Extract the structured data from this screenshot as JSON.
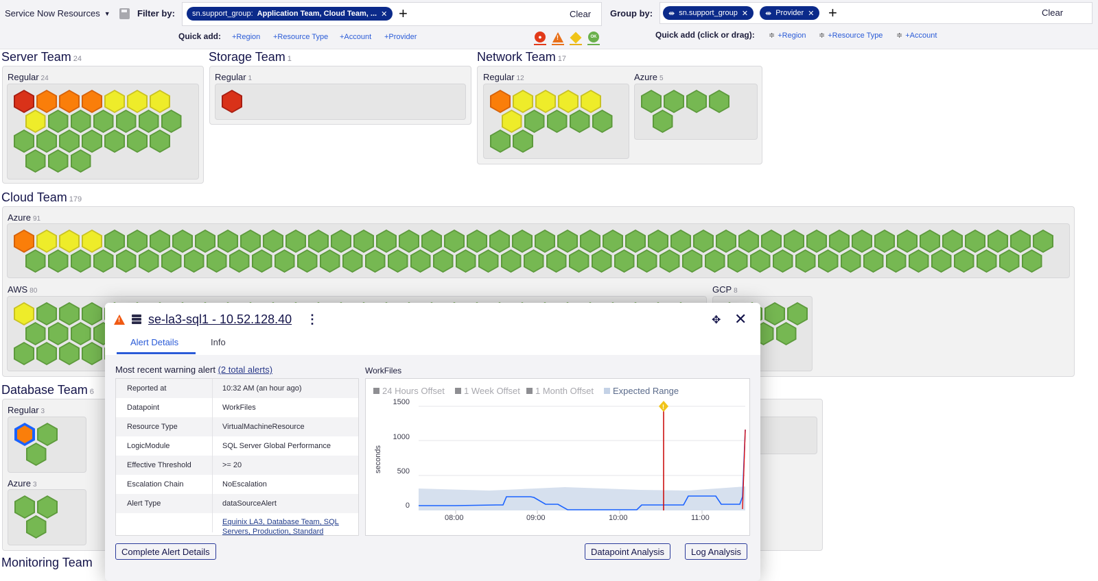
{
  "toolbar": {
    "resource_select": "Service Now Resources",
    "filter_label": "Filter by:",
    "filter_chip_key": "sn.support_group:",
    "filter_chip_value": "Application Team, Cloud Team, ...",
    "filter_clear": "Clear",
    "quick_add_label": "Quick add:",
    "quick_add": [
      "+Region",
      "+Resource Type",
      "+Account",
      "+Provider"
    ],
    "group_label": "Group by:",
    "group_chips": [
      "sn.support_group",
      "Provider"
    ],
    "group_clear": "Clear",
    "group_quick_add_label": "Quick add (click or drag):",
    "group_quick_add": [
      "+Region",
      "+Resource Type",
      "+Account"
    ],
    "severity_icons": [
      "critical-icon",
      "error-icon",
      "warning-icon",
      "ok-icon"
    ],
    "ok_text": "OK"
  },
  "teams": {
    "server": {
      "name": "Server Team",
      "count": "24",
      "groups": [
        {
          "name": "Regular",
          "count": "24"
        }
      ]
    },
    "storage": {
      "name": "Storage Team",
      "count": "1",
      "groups": [
        {
          "name": "Regular",
          "count": "1"
        }
      ]
    },
    "network": {
      "name": "Network Team",
      "count": "17",
      "groups": [
        {
          "name": "Regular",
          "count": "12"
        },
        {
          "name": "Azure",
          "count": "5"
        }
      ]
    },
    "cloud": {
      "name": "Cloud Team",
      "count": "179",
      "groups": [
        {
          "name": "Azure",
          "count": "91"
        },
        {
          "name": "AWS",
          "count": "80"
        },
        {
          "name": "GCP",
          "count": "8"
        }
      ]
    },
    "database": {
      "name": "Database Team",
      "count": "6",
      "groups": [
        {
          "name": "Regular",
          "count": "3"
        },
        {
          "name": "Azure",
          "count": "3"
        }
      ]
    },
    "monitoring": {
      "name": "Monitoring Team",
      "count": ""
    }
  },
  "status_colors": {
    "critical": "#d93219",
    "error": "#fa7e0a",
    "warning": "#eeec2a",
    "ok": "#76b852",
    "selected": "#1a62ff"
  },
  "popup": {
    "title": "se-la3-sql1 - 10.52.128.40",
    "tabs": [
      "Alert Details",
      "Info"
    ],
    "recent_prefix": "Most recent warning alert ",
    "recent_link": "(2 total alerts)",
    "details": [
      {
        "key": "Reported at",
        "value": "10:32 AM  (an hour ago)"
      },
      {
        "key": "Datapoint",
        "value": "WorkFiles"
      },
      {
        "key": "Resource Type",
        "value": "VirtualMachineResource"
      },
      {
        "key": "LogicModule",
        "value": "SQL Server Global Performance"
      },
      {
        "key": "Effective Threshold",
        "value": ">= 20"
      },
      {
        "key": "Escalation Chain",
        "value": "NoEscalation"
      },
      {
        "key": "Alert Type",
        "value": "dataSourceAlert"
      },
      {
        "key": "",
        "value": "Equinix LA3, Database Team, SQL Servers, Production, Standard"
      }
    ],
    "chart_title": "WorkFiles",
    "buttons": {
      "complete": "Complete Alert Details",
      "datapoint": "Datapoint Analysis",
      "log": "Log Analysis"
    }
  },
  "chart_data": {
    "type": "line",
    "title": "WorkFiles",
    "xlabel": "",
    "ylabel": "seconds",
    "ylim": [
      0,
      1500
    ],
    "yticks": [
      "1500",
      "1000",
      "500",
      "0"
    ],
    "xticks": [
      "08:00",
      "09:00",
      "10:00",
      "11:00"
    ],
    "legend": [
      "24 Hours Offset",
      "1 Week Offset",
      "1 Month Offset",
      "Expected Range"
    ],
    "grid": true,
    "alert_marker_time": "10:32",
    "series": [
      {
        "name": "WorkFiles",
        "x": [
          "07:35",
          "08:00",
          "08:30",
          "08:40",
          "08:45",
          "09:00",
          "09:05",
          "09:15",
          "09:25",
          "09:30",
          "10:00",
          "10:15",
          "10:20",
          "10:30",
          "10:45",
          "10:50",
          "10:55",
          "11:00",
          "11:10",
          "11:15",
          "11:25",
          "11:30",
          "11:32",
          "11:35"
        ],
        "values": [
          70,
          70,
          80,
          80,
          200,
          210,
          190,
          80,
          80,
          10,
          10,
          10,
          80,
          80,
          80,
          200,
          210,
          200,
          200,
          80,
          80,
          200,
          1150,
          1150
        ]
      },
      {
        "name": "Expected Range (upper)",
        "x": [
          "07:35",
          "08:30",
          "09:15",
          "10:00",
          "10:40",
          "11:35"
        ],
        "values": [
          300,
          270,
          310,
          280,
          270,
          310
        ]
      }
    ]
  }
}
